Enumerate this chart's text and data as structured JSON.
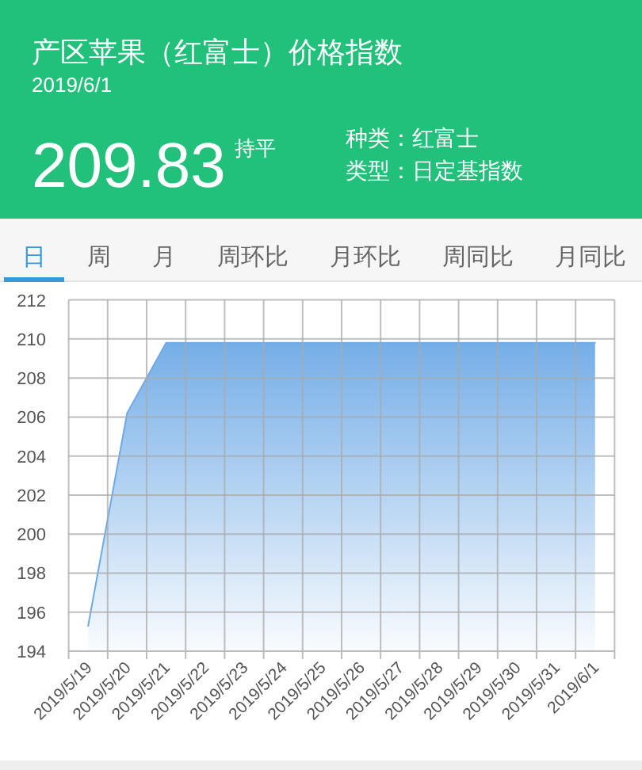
{
  "chart_data": {
    "type": "area",
    "title": "产区苹果（红富士）价格指数",
    "subtitle": "2019/6/1",
    "annotations": [
      "209.83",
      "持平",
      "种类：红富士",
      "类型：日定基指数",
      "日",
      "周",
      "月",
      "周环比",
      "月环比",
      "周同比",
      "月同比"
    ],
    "categories": [
      "2019/5/19",
      "2019/5/20",
      "2019/5/21",
      "2019/5/22",
      "2019/5/23",
      "2019/5/24",
      "2019/5/25",
      "2019/5/26",
      "2019/5/27",
      "2019/5/28",
      "2019/5/29",
      "2019/5/30",
      "2019/5/31",
      "2019/6/1"
    ],
    "series": [
      {
        "color": "#6eaae6",
        "values": [
          195.3,
          206.2,
          209.8,
          209.8,
          209.8,
          209.8,
          209.8,
          209.8,
          209.8,
          209.8,
          209.8,
          209.8,
          209.8,
          209.8
        ]
      }
    ],
    "ylim": [
      194,
      212
    ],
    "yticks": [
      194,
      196,
      198,
      200,
      202,
      204,
      206,
      208,
      210,
      212
    ],
    "grid": true
  }
}
